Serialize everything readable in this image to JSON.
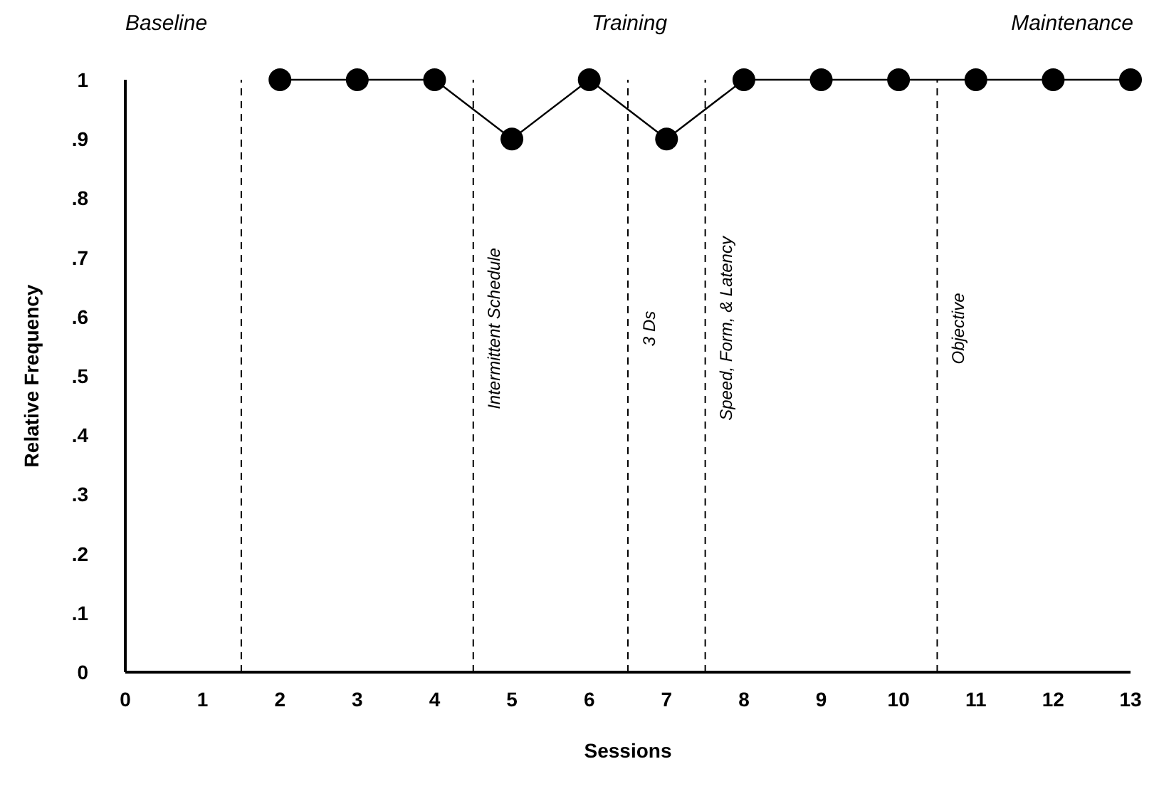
{
  "chart_data": {
    "type": "line",
    "xlabel": "Sessions",
    "ylabel": "Relative Frequency",
    "annotations": [
      "Baseline",
      "Training",
      "Maintenance"
    ],
    "x": [
      2,
      3,
      4,
      5,
      6,
      7,
      8,
      9,
      10,
      11,
      12,
      13
    ],
    "series": [
      {
        "color": "#000000",
        "values": [
          1,
          1,
          1,
          0.9,
          1,
          0.9,
          1,
          1,
          1,
          1,
          1,
          1
        ]
      }
    ],
    "xlim": [
      0,
      13
    ],
    "xticks": [
      0,
      1,
      2,
      3,
      4,
      5,
      6,
      7,
      8,
      9,
      10,
      11,
      12,
      13
    ],
    "ylim": [
      0,
      1
    ],
    "yticks": [
      0,
      {
        "value": 0.1,
        "label": ".1"
      },
      {
        "value": 0.2,
        "label": ".2"
      },
      {
        "value": 0.3,
        "label": ".3"
      },
      {
        "value": 0.4,
        "label": ".4"
      },
      {
        "value": 0.5,
        "label": ".5"
      },
      {
        "value": 0.6,
        "label": ".6"
      },
      {
        "value": 0.7,
        "label": ".7"
      },
      {
        "value": 0.8,
        "label": ".8"
      },
      {
        "value": 0.9,
        "label": ".9"
      },
      1
    ],
    "ref_lines": [
      {
        "axis": "x",
        "value": 1.5,
        "line_style": "dashed"
      },
      {
        "axis": "x",
        "value": 4.5,
        "label": "Intermittent Schedule",
        "line_style": "dashed"
      },
      {
        "axis": "x",
        "value": 6.5,
        "label": "3 Ds",
        "line_style": "dashed"
      },
      {
        "axis": "x",
        "value": 7.5,
        "label": "Speed, Form, & Latency",
        "line_style": "dashed"
      },
      {
        "axis": "x",
        "value": 10.5,
        "label": "Objective",
        "line_style": "dashed"
      }
    ],
    "grid": false,
    "legend": false,
    "marker": "circle",
    "line_style": "solid"
  }
}
